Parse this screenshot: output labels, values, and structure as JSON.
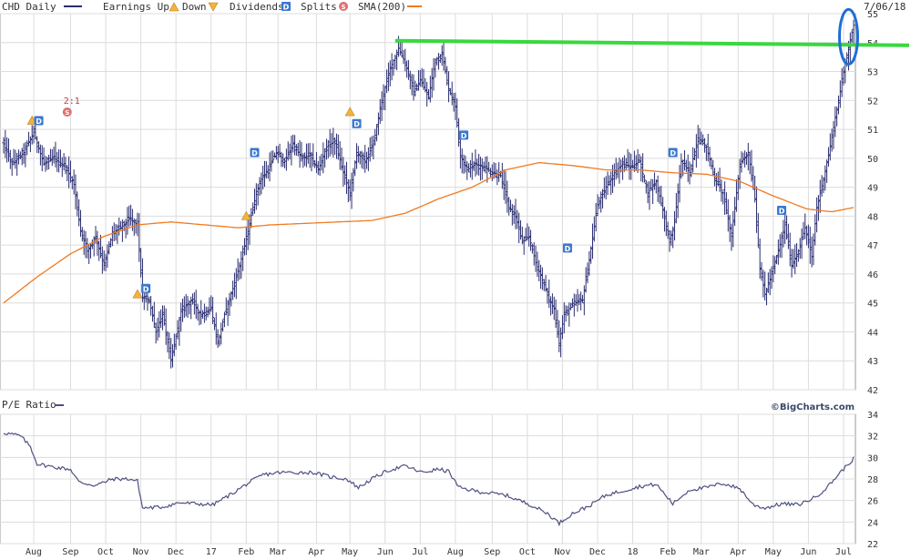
{
  "legend": {
    "ticker_label": "CHD Daily",
    "earnings_up_label": "Earnings Up",
    "earnings_down_label": "Down",
    "dividends_label": "Dividends",
    "splits_label": "Splits",
    "sma_label": "SMA(200)",
    "date": "7/06/18"
  },
  "lower_panel_label": "P/E Ratio",
  "copyright": "©BigCharts.com",
  "marker_texts": {
    "dividend": "D",
    "split": "S",
    "split_ratio": "2:1"
  },
  "colors": {
    "price": "#2a2d6e",
    "sma": "#f07a20",
    "pe": "#4e5080",
    "grid": "#dcdcdc",
    "resistance": "#39d83f",
    "circle": "#1f6fd6",
    "dividend_badge": "#3a78d0",
    "split_badge": "#e07070",
    "earnings_up": "#f3b43a"
  },
  "chart_data": [
    {
      "type": "line",
      "subtype": "ohlc-bars",
      "name": "price",
      "x_range": [
        0,
        508
      ],
      "y_range": [
        42,
        55
      ],
      "y_ticks": [
        42,
        43,
        44,
        45,
        46,
        47,
        48,
        49,
        50,
        51,
        52,
        53,
        54,
        55
      ],
      "x_ticks": [
        {
          "label": "Aug",
          "x": 18
        },
        {
          "label": "Sep",
          "x": 40
        },
        {
          "label": "Oct",
          "x": 61
        },
        {
          "label": "Nov",
          "x": 82
        },
        {
          "label": "Dec",
          "x": 103
        },
        {
          "label": "17",
          "x": 124
        },
        {
          "label": "Feb",
          "x": 145
        },
        {
          "label": "Mar",
          "x": 164
        },
        {
          "label": "Apr",
          "x": 187
        },
        {
          "label": "May",
          "x": 207
        },
        {
          "label": "Jun",
          "x": 228
        },
        {
          "label": "Jul",
          "x": 249
        },
        {
          "label": "Aug",
          "x": 270
        },
        {
          "label": "Sep",
          "x": 292
        },
        {
          "label": "Oct",
          "x": 313
        },
        {
          "label": "Nov",
          "x": 334
        },
        {
          "label": "Dec",
          "x": 355
        },
        {
          "label": "18",
          "x": 376
        },
        {
          "label": "Feb",
          "x": 397
        },
        {
          "label": "Mar",
          "x": 417
        },
        {
          "label": "Apr",
          "x": 439
        },
        {
          "label": "May",
          "x": 460
        },
        {
          "label": "Jun",
          "x": 481
        },
        {
          "label": "Jul",
          "x": 502
        }
      ],
      "price_anchors": [
        [
          0,
          50.5
        ],
        [
          5,
          49.8
        ],
        [
          12,
          50.2
        ],
        [
          18,
          50.9
        ],
        [
          24,
          49.8
        ],
        [
          30,
          50.0
        ],
        [
          37,
          49.7
        ],
        [
          42,
          49.1
        ],
        [
          46,
          47.5
        ],
        [
          50,
          46.8
        ],
        [
          55,
          47.3
        ],
        [
          60,
          46.3
        ],
        [
          65,
          47.4
        ],
        [
          70,
          47.6
        ],
        [
          75,
          47.9
        ],
        [
          80,
          47.7
        ],
        [
          83,
          45.2
        ],
        [
          87,
          45.1
        ],
        [
          91,
          44.0
        ],
        [
          95,
          44.6
        ],
        [
          100,
          43.0
        ],
        [
          106,
          44.7
        ],
        [
          112,
          45.1
        ],
        [
          118,
          44.6
        ],
        [
          124,
          44.8
        ],
        [
          128,
          43.6
        ],
        [
          132,
          44.6
        ],
        [
          137,
          45.5
        ],
        [
          141,
          46.3
        ],
        [
          145,
          47.2
        ],
        [
          149,
          48.3
        ],
        [
          153,
          49.2
        ],
        [
          158,
          49.6
        ],
        [
          163,
          50.2
        ],
        [
          168,
          49.9
        ],
        [
          173,
          50.5
        ],
        [
          178,
          50.0
        ],
        [
          183,
          50.1
        ],
        [
          188,
          49.6
        ],
        [
          193,
          50.4
        ],
        [
          198,
          50.6
        ],
        [
          203,
          49.5
        ],
        [
          207,
          48.8
        ],
        [
          211,
          50.2
        ],
        [
          216,
          49.9
        ],
        [
          221,
          50.5
        ],
        [
          226,
          52.0
        ],
        [
          231,
          53.1
        ],
        [
          236,
          53.8
        ],
        [
          240,
          53.3
        ],
        [
          245,
          52.3
        ],
        [
          249,
          52.7
        ],
        [
          254,
          52.1
        ],
        [
          258,
          53.4
        ],
        [
          262,
          53.6
        ],
        [
          266,
          52.4
        ],
        [
          270,
          51.8
        ],
        [
          273,
          50.1
        ],
        [
          277,
          49.6
        ],
        [
          282,
          49.8
        ],
        [
          287,
          49.7
        ],
        [
          292,
          49.5
        ],
        [
          297,
          49.4
        ],
        [
          302,
          48.3
        ],
        [
          306,
          48.0
        ],
        [
          310,
          47.1
        ],
        [
          314,
          47.3
        ],
        [
          318,
          46.4
        ],
        [
          322,
          45.8
        ],
        [
          326,
          45.1
        ],
        [
          329,
          44.8
        ],
        [
          332,
          43.6
        ],
        [
          335,
          44.6
        ],
        [
          338,
          44.8
        ],
        [
          342,
          45.0
        ],
        [
          346,
          45.1
        ],
        [
          350,
          46.5
        ],
        [
          355,
          48.4
        ],
        [
          360,
          49.0
        ],
        [
          365,
          49.5
        ],
        [
          370,
          49.8
        ],
        [
          375,
          49.7
        ],
        [
          380,
          49.9
        ],
        [
          385,
          48.8
        ],
        [
          390,
          49.2
        ],
        [
          394,
          48.2
        ],
        [
          398,
          47.1
        ],
        [
          401,
          47.8
        ],
        [
          405,
          49.9
        ],
        [
          410,
          49.5
        ],
        [
          415,
          50.7
        ],
        [
          420,
          50.4
        ],
        [
          425,
          49.3
        ],
        [
          430,
          48.8
        ],
        [
          435,
          47.3
        ],
        [
          440,
          49.8
        ],
        [
          445,
          50.2
        ],
        [
          449,
          48.6
        ],
        [
          452,
          46.2
        ],
        [
          455,
          45.3
        ],
        [
          459,
          46.0
        ],
        [
          463,
          46.8
        ],
        [
          467,
          47.7
        ],
        [
          471,
          46.3
        ],
        [
          475,
          46.8
        ],
        [
          479,
          47.6
        ],
        [
          483,
          46.6
        ],
        [
          486,
          48.3
        ],
        [
          490,
          49.3
        ],
        [
          494,
          50.4
        ],
        [
          497,
          51.4
        ],
        [
          500,
          52.3
        ],
        [
          503,
          53.3
        ],
        [
          506,
          54.1
        ],
        [
          508,
          54.6
        ]
      ],
      "sma_anchors": [
        [
          0,
          45.0
        ],
        [
          20,
          45.9
        ],
        [
          40,
          46.7
        ],
        [
          60,
          47.3
        ],
        [
          80,
          47.7
        ],
        [
          100,
          47.8
        ],
        [
          120,
          47.7
        ],
        [
          140,
          47.6
        ],
        [
          160,
          47.7
        ],
        [
          180,
          47.75
        ],
        [
          200,
          47.8
        ],
        [
          220,
          47.85
        ],
        [
          240,
          48.1
        ],
        [
          260,
          48.6
        ],
        [
          280,
          49.0
        ],
        [
          300,
          49.6
        ],
        [
          320,
          49.85
        ],
        [
          340,
          49.75
        ],
        [
          360,
          49.6
        ],
        [
          380,
          49.6
        ],
        [
          400,
          49.5
        ],
        [
          420,
          49.45
        ],
        [
          440,
          49.2
        ],
        [
          460,
          48.7
        ],
        [
          480,
          48.25
        ],
        [
          495,
          48.15
        ],
        [
          508,
          48.3
        ]
      ],
      "resistance_level": 54.0,
      "highlight": "latest bar",
      "earnings_up_markers": [
        {
          "x": 17,
          "y": 51.3
        },
        {
          "x": 80,
          "y": 45.3
        },
        {
          "x": 145,
          "y": 48.0
        },
        {
          "x": 207,
          "y": 51.6
        }
      ],
      "dividend_markers": [
        {
          "x": 21,
          "y": 51.3
        },
        {
          "x": 85,
          "y": 45.5
        },
        {
          "x": 150,
          "y": 50.2
        },
        {
          "x": 211,
          "y": 51.2
        },
        {
          "x": 275,
          "y": 50.8
        },
        {
          "x": 337,
          "y": 46.9
        },
        {
          "x": 400,
          "y": 50.2
        },
        {
          "x": 465,
          "y": 48.2
        }
      ],
      "split_markers": [
        {
          "x": 38,
          "y": 51.6,
          "ratio": "2:1"
        }
      ]
    },
    {
      "type": "line",
      "name": "P/E Ratio",
      "x_range": [
        0,
        508
      ],
      "y_range": [
        22,
        34
      ],
      "y_ticks": [
        22,
        24,
        26,
        28,
        30,
        32,
        34
      ],
      "pe_anchors": [
        [
          0,
          32.3
        ],
        [
          10,
          32.0
        ],
        [
          16,
          31.0
        ],
        [
          20,
          29.4
        ],
        [
          30,
          29.1
        ],
        [
          40,
          28.9
        ],
        [
          45,
          27.7
        ],
        [
          55,
          27.4
        ],
        [
          65,
          28.0
        ],
        [
          75,
          28.0
        ],
        [
          80,
          27.8
        ],
        [
          83,
          25.3
        ],
        [
          95,
          25.4
        ],
        [
          105,
          25.8
        ],
        [
          115,
          25.7
        ],
        [
          125,
          25.6
        ],
        [
          135,
          26.5
        ],
        [
          145,
          27.5
        ],
        [
          155,
          28.4
        ],
        [
          165,
          28.6
        ],
        [
          175,
          28.6
        ],
        [
          185,
          28.6
        ],
        [
          195,
          28.2
        ],
        [
          205,
          28.0
        ],
        [
          212,
          27.2
        ],
        [
          220,
          28.0
        ],
        [
          230,
          28.8
        ],
        [
          240,
          29.2
        ],
        [
          250,
          28.6
        ],
        [
          260,
          28.9
        ],
        [
          266,
          28.7
        ],
        [
          272,
          27.2
        ],
        [
          285,
          26.8
        ],
        [
          300,
          26.5
        ],
        [
          315,
          25.6
        ],
        [
          325,
          24.8
        ],
        [
          332,
          23.9
        ],
        [
          340,
          24.8
        ],
        [
          350,
          25.5
        ],
        [
          360,
          26.5
        ],
        [
          370,
          26.9
        ],
        [
          380,
          27.3
        ],
        [
          390,
          27.5
        ],
        [
          400,
          25.7
        ],
        [
          410,
          27.0
        ],
        [
          420,
          27.2
        ],
        [
          430,
          27.6
        ],
        [
          440,
          27.1
        ],
        [
          448,
          25.6
        ],
        [
          455,
          25.3
        ],
        [
          465,
          25.7
        ],
        [
          475,
          25.6
        ],
        [
          485,
          26.3
        ],
        [
          492,
          27.2
        ],
        [
          500,
          28.6
        ],
        [
          508,
          29.9
        ]
      ]
    }
  ]
}
